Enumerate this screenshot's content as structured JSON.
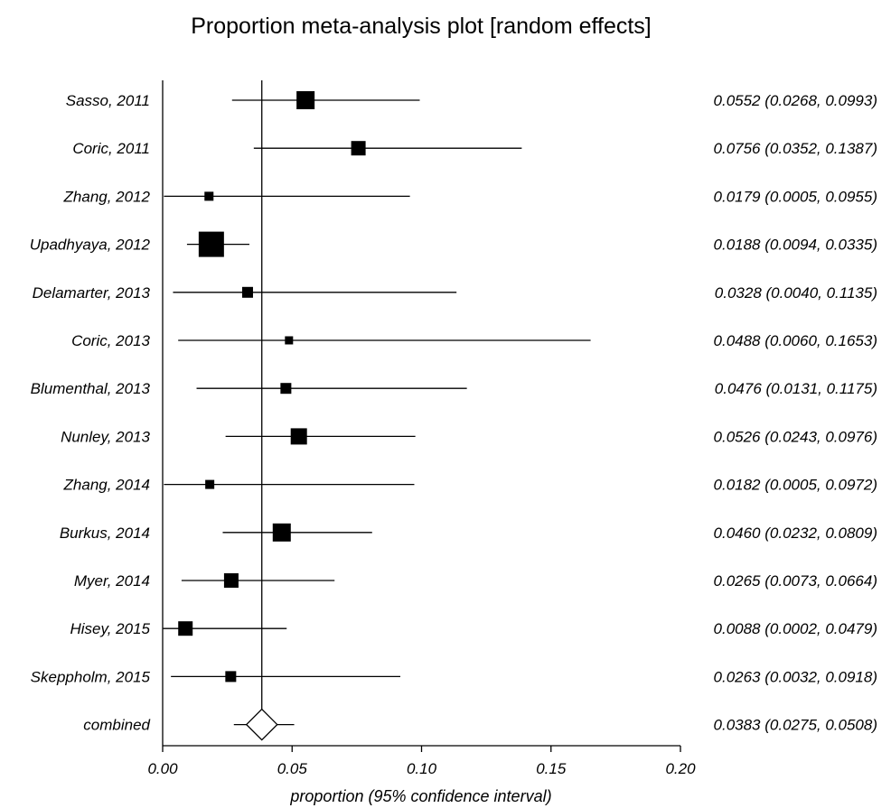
{
  "chart_data": {
    "type": "forest",
    "title": "Proportion meta-analysis plot [random effects]",
    "xlabel": "proportion (95% confidence interval)",
    "xlim": [
      0.0,
      0.2
    ],
    "xticks": [
      "0.00",
      "0.05",
      "0.10",
      "0.15",
      "0.20"
    ],
    "reference_line": 0.0383,
    "studies": [
      {
        "name": "Sasso, 2011",
        "estimate": 0.0552,
        "lower": 0.0268,
        "upper": 0.0993,
        "weight": 20,
        "label": "0.0552 (0.0268, 0.0993)"
      },
      {
        "name": "Coric, 2011",
        "estimate": 0.0756,
        "lower": 0.0352,
        "upper": 0.1387,
        "weight": 16,
        "label": "0.0756 (0.0352, 0.1387)"
      },
      {
        "name": "Zhang, 2012",
        "estimate": 0.0179,
        "lower": 0.0005,
        "upper": 0.0955,
        "weight": 10,
        "label": "0.0179 (0.0005, 0.0955)"
      },
      {
        "name": "Upadhyaya, 2012",
        "estimate": 0.0188,
        "lower": 0.0094,
        "upper": 0.0335,
        "weight": 28,
        "label": "0.0188 (0.0094, 0.0335)"
      },
      {
        "name": "Delamarter, 2013",
        "estimate": 0.0328,
        "lower": 0.004,
        "upper": 0.1135,
        "weight": 12,
        "label": "0.0328 (0.0040, 0.1135)"
      },
      {
        "name": "Coric, 2013",
        "estimate": 0.0488,
        "lower": 0.006,
        "upper": 0.1653,
        "weight": 9,
        "label": "0.0488 (0.0060, 0.1653)"
      },
      {
        "name": "Blumenthal, 2013",
        "estimate": 0.0476,
        "lower": 0.0131,
        "upper": 0.1175,
        "weight": 12,
        "label": "0.0476 (0.0131, 0.1175)"
      },
      {
        "name": "Nunley, 2013",
        "estimate": 0.0526,
        "lower": 0.0243,
        "upper": 0.0976,
        "weight": 18,
        "label": "0.0526 (0.0243, 0.0976)"
      },
      {
        "name": "Zhang, 2014",
        "estimate": 0.0182,
        "lower": 0.0005,
        "upper": 0.0972,
        "weight": 10,
        "label": "0.0182 (0.0005, 0.0972)"
      },
      {
        "name": "Burkus, 2014",
        "estimate": 0.046,
        "lower": 0.0232,
        "upper": 0.0809,
        "weight": 20,
        "label": "0.0460 (0.0232, 0.0809)"
      },
      {
        "name": "Myer, 2014",
        "estimate": 0.0265,
        "lower": 0.0073,
        "upper": 0.0664,
        "weight": 16,
        "label": "0.0265 (0.0073, 0.0664)"
      },
      {
        "name": "Hisey, 2015",
        "estimate": 0.0088,
        "lower": 0.0002,
        "upper": 0.0479,
        "weight": 16,
        "label": "0.0088 (0.0002, 0.0479)"
      },
      {
        "name": "Skeppholm, 2015",
        "estimate": 0.0263,
        "lower": 0.0032,
        "upper": 0.0918,
        "weight": 12,
        "label": "0.0263 (0.0032, 0.0918)"
      }
    ],
    "combined": {
      "name": "combined",
      "estimate": 0.0383,
      "lower": 0.0275,
      "upper": 0.0508,
      "label": "0.0383 (0.0275, 0.0508)"
    }
  }
}
